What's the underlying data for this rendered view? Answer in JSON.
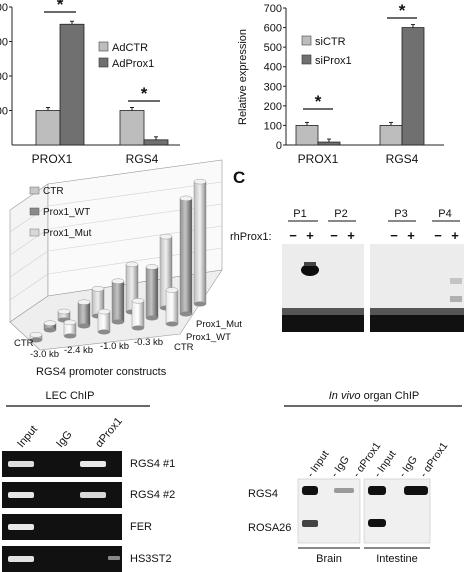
{
  "chart_data": [
    {
      "type": "bar",
      "panel": "top-left",
      "categories": [
        "PROX1",
        "RGS4"
      ],
      "series": [
        {
          "name": "AdCTR",
          "values": [
            100,
            100
          ],
          "color": "#bdbdbd"
        },
        {
          "name": "AdProx1",
          "values": [
            350,
            15
          ],
          "color": "#707070"
        }
      ],
      "ylim": [
        0,
        400
      ],
      "yticks": [
        "00",
        "00",
        "00",
        "00"
      ],
      "significance": [
        "*",
        "*"
      ],
      "legend": "top-right"
    },
    {
      "type": "bar",
      "panel": "top-right",
      "categories": [
        "PROX1",
        "RGS4"
      ],
      "series": [
        {
          "name": "siCTR",
          "values": [
            100,
            100
          ],
          "color": "#bdbdbd"
        },
        {
          "name": "siProx1",
          "values": [
            15,
            600
          ],
          "color": "#707070"
        }
      ],
      "ylabel": "Relative expression",
      "ylim": [
        0,
        700
      ],
      "yticks": [
        "0",
        "100",
        "200",
        "300",
        "400",
        "500",
        "600",
        "700"
      ],
      "significance": [
        "*",
        "*"
      ],
      "legend": "top-left"
    },
    {
      "type": "bar",
      "panel": "middle-left-3d",
      "categories": [
        "CTR",
        "-3.0 kb",
        "-2.4 kb",
        "-1.0 kb",
        "-0.3 kb"
      ],
      "series": [
        {
          "name": "CTR",
          "values": [
            0.3,
            0.8,
            1.2,
            1.6,
            2.0
          ],
          "color": "#c8c8c8"
        },
        {
          "name": "Prox1_WT",
          "values": [
            0.4,
            1.4,
            2.4,
            3.0,
            6.8
          ],
          "color": "#8a8a8a"
        },
        {
          "name": "Prox1_Mut",
          "values": [
            0.5,
            1.6,
            2.8,
            4.2,
            7.2
          ],
          "color": "#d8d8d8"
        }
      ],
      "xlabel": "RGS4 promoter constructs",
      "depth_labels": [
        "CTR",
        "Prox1_WT",
        "Prox1_Mut"
      ]
    }
  ],
  "panel_c": {
    "letter": "C",
    "row_label": "rhProx1:",
    "probes": [
      "P1",
      "P2",
      "P3",
      "P4"
    ],
    "minus": "−",
    "plus": "+"
  },
  "lec_chip": {
    "title": "LEC ChIP",
    "lanes": [
      "Input",
      "IgG",
      "αProx1"
    ],
    "rows": [
      "RGS4 #1",
      "RGS4 #2",
      "FER",
      "HS3ST2"
    ]
  },
  "organ_chip": {
    "title_italic": "In vivo",
    "title_rest": " organ ChIP",
    "lanes": [
      "- Input",
      "- IgG",
      "- αProx1",
      "- Input",
      "- IgG",
      "- αProx1"
    ],
    "rows": [
      "RGS4",
      "ROSA26"
    ],
    "tissues": [
      "Brain",
      "Intestine"
    ]
  }
}
